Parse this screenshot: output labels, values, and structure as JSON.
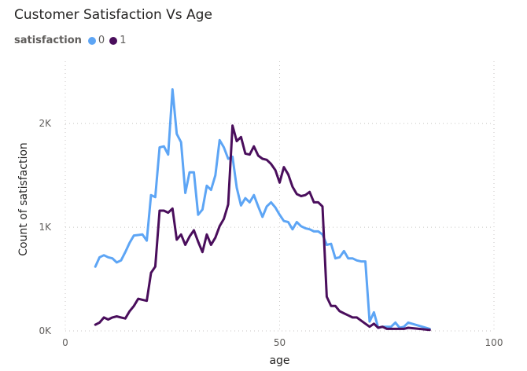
{
  "chart_data": {
    "type": "line",
    "title": "Customer Satisfaction Vs Age",
    "xlabel": "age",
    "ylabel": "Count of satisfaction",
    "xlim": [
      0,
      100
    ],
    "ylim": [
      0,
      2600
    ],
    "x_ticks": [
      0,
      50,
      100
    ],
    "x_tick_labels": [
      "0",
      "50",
      "100"
    ],
    "y_ticks": [
      0,
      1000,
      2000
    ],
    "y_tick_labels": [
      "0K",
      "1K",
      "2K"
    ],
    "grid": true,
    "legend": {
      "title": "satisfaction",
      "position": "top-left"
    },
    "series": [
      {
        "name": "0",
        "color": "#5da5f5",
        "x": [
          7,
          8,
          9,
          10,
          11,
          12,
          13,
          14,
          15,
          16,
          17,
          18,
          19,
          20,
          21,
          22,
          23,
          24,
          25,
          26,
          27,
          28,
          29,
          30,
          31,
          32,
          33,
          34,
          35,
          36,
          37,
          38,
          39,
          40,
          41,
          42,
          43,
          44,
          45,
          46,
          47,
          48,
          49,
          50,
          51,
          52,
          53,
          54,
          55,
          56,
          57,
          58,
          59,
          60,
          61,
          62,
          63,
          64,
          65,
          66,
          67,
          68,
          69,
          70,
          71,
          72,
          73,
          74,
          75,
          76,
          77,
          78,
          79,
          80,
          85
        ],
        "values": [
          620,
          710,
          730,
          710,
          700,
          660,
          680,
          760,
          850,
          920,
          925,
          930,
          870,
          1310,
          1290,
          1770,
          1780,
          1700,
          2330,
          1900,
          1820,
          1330,
          1530,
          1530,
          1120,
          1170,
          1400,
          1360,
          1500,
          1840,
          1770,
          1660,
          1680,
          1380,
          1210,
          1280,
          1240,
          1310,
          1200,
          1100,
          1200,
          1240,
          1190,
          1120,
          1060,
          1050,
          980,
          1050,
          1010,
          990,
          980,
          960,
          960,
          930,
          830,
          840,
          700,
          710,
          770,
          700,
          700,
          680,
          670,
          670,
          90,
          180,
          30,
          40,
          40,
          40,
          80,
          30,
          40,
          80,
          20
        ]
      },
      {
        "name": "1",
        "color": "#4a0e5c",
        "x": [
          7,
          8,
          9,
          10,
          11,
          12,
          13,
          14,
          15,
          16,
          17,
          18,
          19,
          20,
          21,
          22,
          23,
          24,
          25,
          26,
          27,
          28,
          29,
          30,
          31,
          32,
          33,
          34,
          35,
          36,
          37,
          38,
          39,
          40,
          41,
          42,
          43,
          44,
          45,
          46,
          47,
          48,
          49,
          50,
          51,
          52,
          53,
          54,
          55,
          56,
          57,
          58,
          59,
          60,
          61,
          62,
          63,
          64,
          65,
          66,
          67,
          68,
          69,
          70,
          71,
          72,
          73,
          74,
          75,
          76,
          77,
          78,
          79,
          80,
          85
        ],
        "values": [
          60,
          80,
          130,
          110,
          130,
          140,
          130,
          120,
          190,
          240,
          310,
          300,
          290,
          560,
          620,
          1160,
          1160,
          1140,
          1180,
          880,
          930,
          830,
          910,
          970,
          860,
          760,
          930,
          830,
          900,
          1010,
          1080,
          1220,
          1980,
          1830,
          1870,
          1710,
          1700,
          1780,
          1690,
          1660,
          1650,
          1610,
          1550,
          1430,
          1580,
          1510,
          1390,
          1320,
          1300,
          1310,
          1340,
          1240,
          1240,
          1200,
          330,
          240,
          240,
          190,
          170,
          150,
          130,
          130,
          100,
          70,
          40,
          70,
          30,
          40,
          20,
          20,
          20,
          20,
          20,
          30,
          10
        ]
      }
    ]
  }
}
